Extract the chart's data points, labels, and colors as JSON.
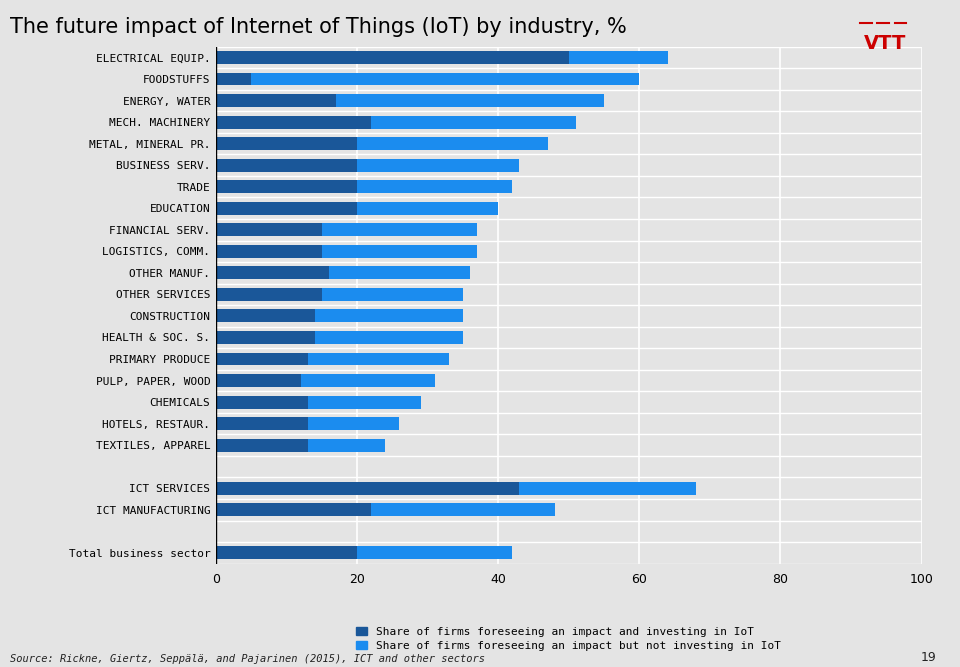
{
  "title": "The future impact of Internet of Things (IoT) by industry, %",
  "categories": [
    "ELECTRICAL EQUIP.",
    "FOODSTUFFS",
    "ENERGY, WATER",
    "MECH. MACHINERY",
    "METAL, MINERAL PR.",
    "BUSINESS SERV.",
    "TRADE",
    "EDUCATION",
    "FINANCIAL SERV.",
    "LOGISTICS, COMM.",
    "OTHER MANUF.",
    "OTHER SERVICES",
    "CONSTRUCTION",
    "HEALTH & SOC. S.",
    "PRIMARY PRODUCE",
    "PULP, PAPER, WOOD",
    "CHEMICALS",
    "HOTELS, RESTAUR.",
    "TEXTILES, APPAREL",
    "",
    "ICT SERVICES",
    "ICT MANUFACTURING",
    "",
    "Total business sector"
  ],
  "invest": [
    50,
    5,
    17,
    22,
    20,
    20,
    20,
    20,
    15,
    15,
    16,
    15,
    14,
    14,
    13,
    12,
    13,
    13,
    13,
    0,
    43,
    22,
    0,
    20
  ],
  "foresee": [
    14,
    55,
    38,
    29,
    27,
    23,
    22,
    20,
    22,
    22,
    20,
    20,
    21,
    21,
    20,
    19,
    16,
    13,
    11,
    0,
    25,
    26,
    0,
    22
  ],
  "color_invest": "#1a5799",
  "color_foresee": "#1b8cef",
  "bg_color": "#e4e4e4",
  "xlim": [
    0,
    100
  ],
  "xticks": [
    0,
    20,
    40,
    60,
    80,
    100
  ],
  "legend1": "Share of firms foreseeing an impact and investing in IoT",
  "legend2": "Share of firms foreseeing an impact but not investing in IoT",
  "source": "Source: Rickne, Giertz, Seppälä, and Pajarinen (2015), ICT and other sectors",
  "page_num": "19",
  "title_fontsize": 15,
  "label_fontsize": 8.0,
  "tick_fontsize": 9
}
